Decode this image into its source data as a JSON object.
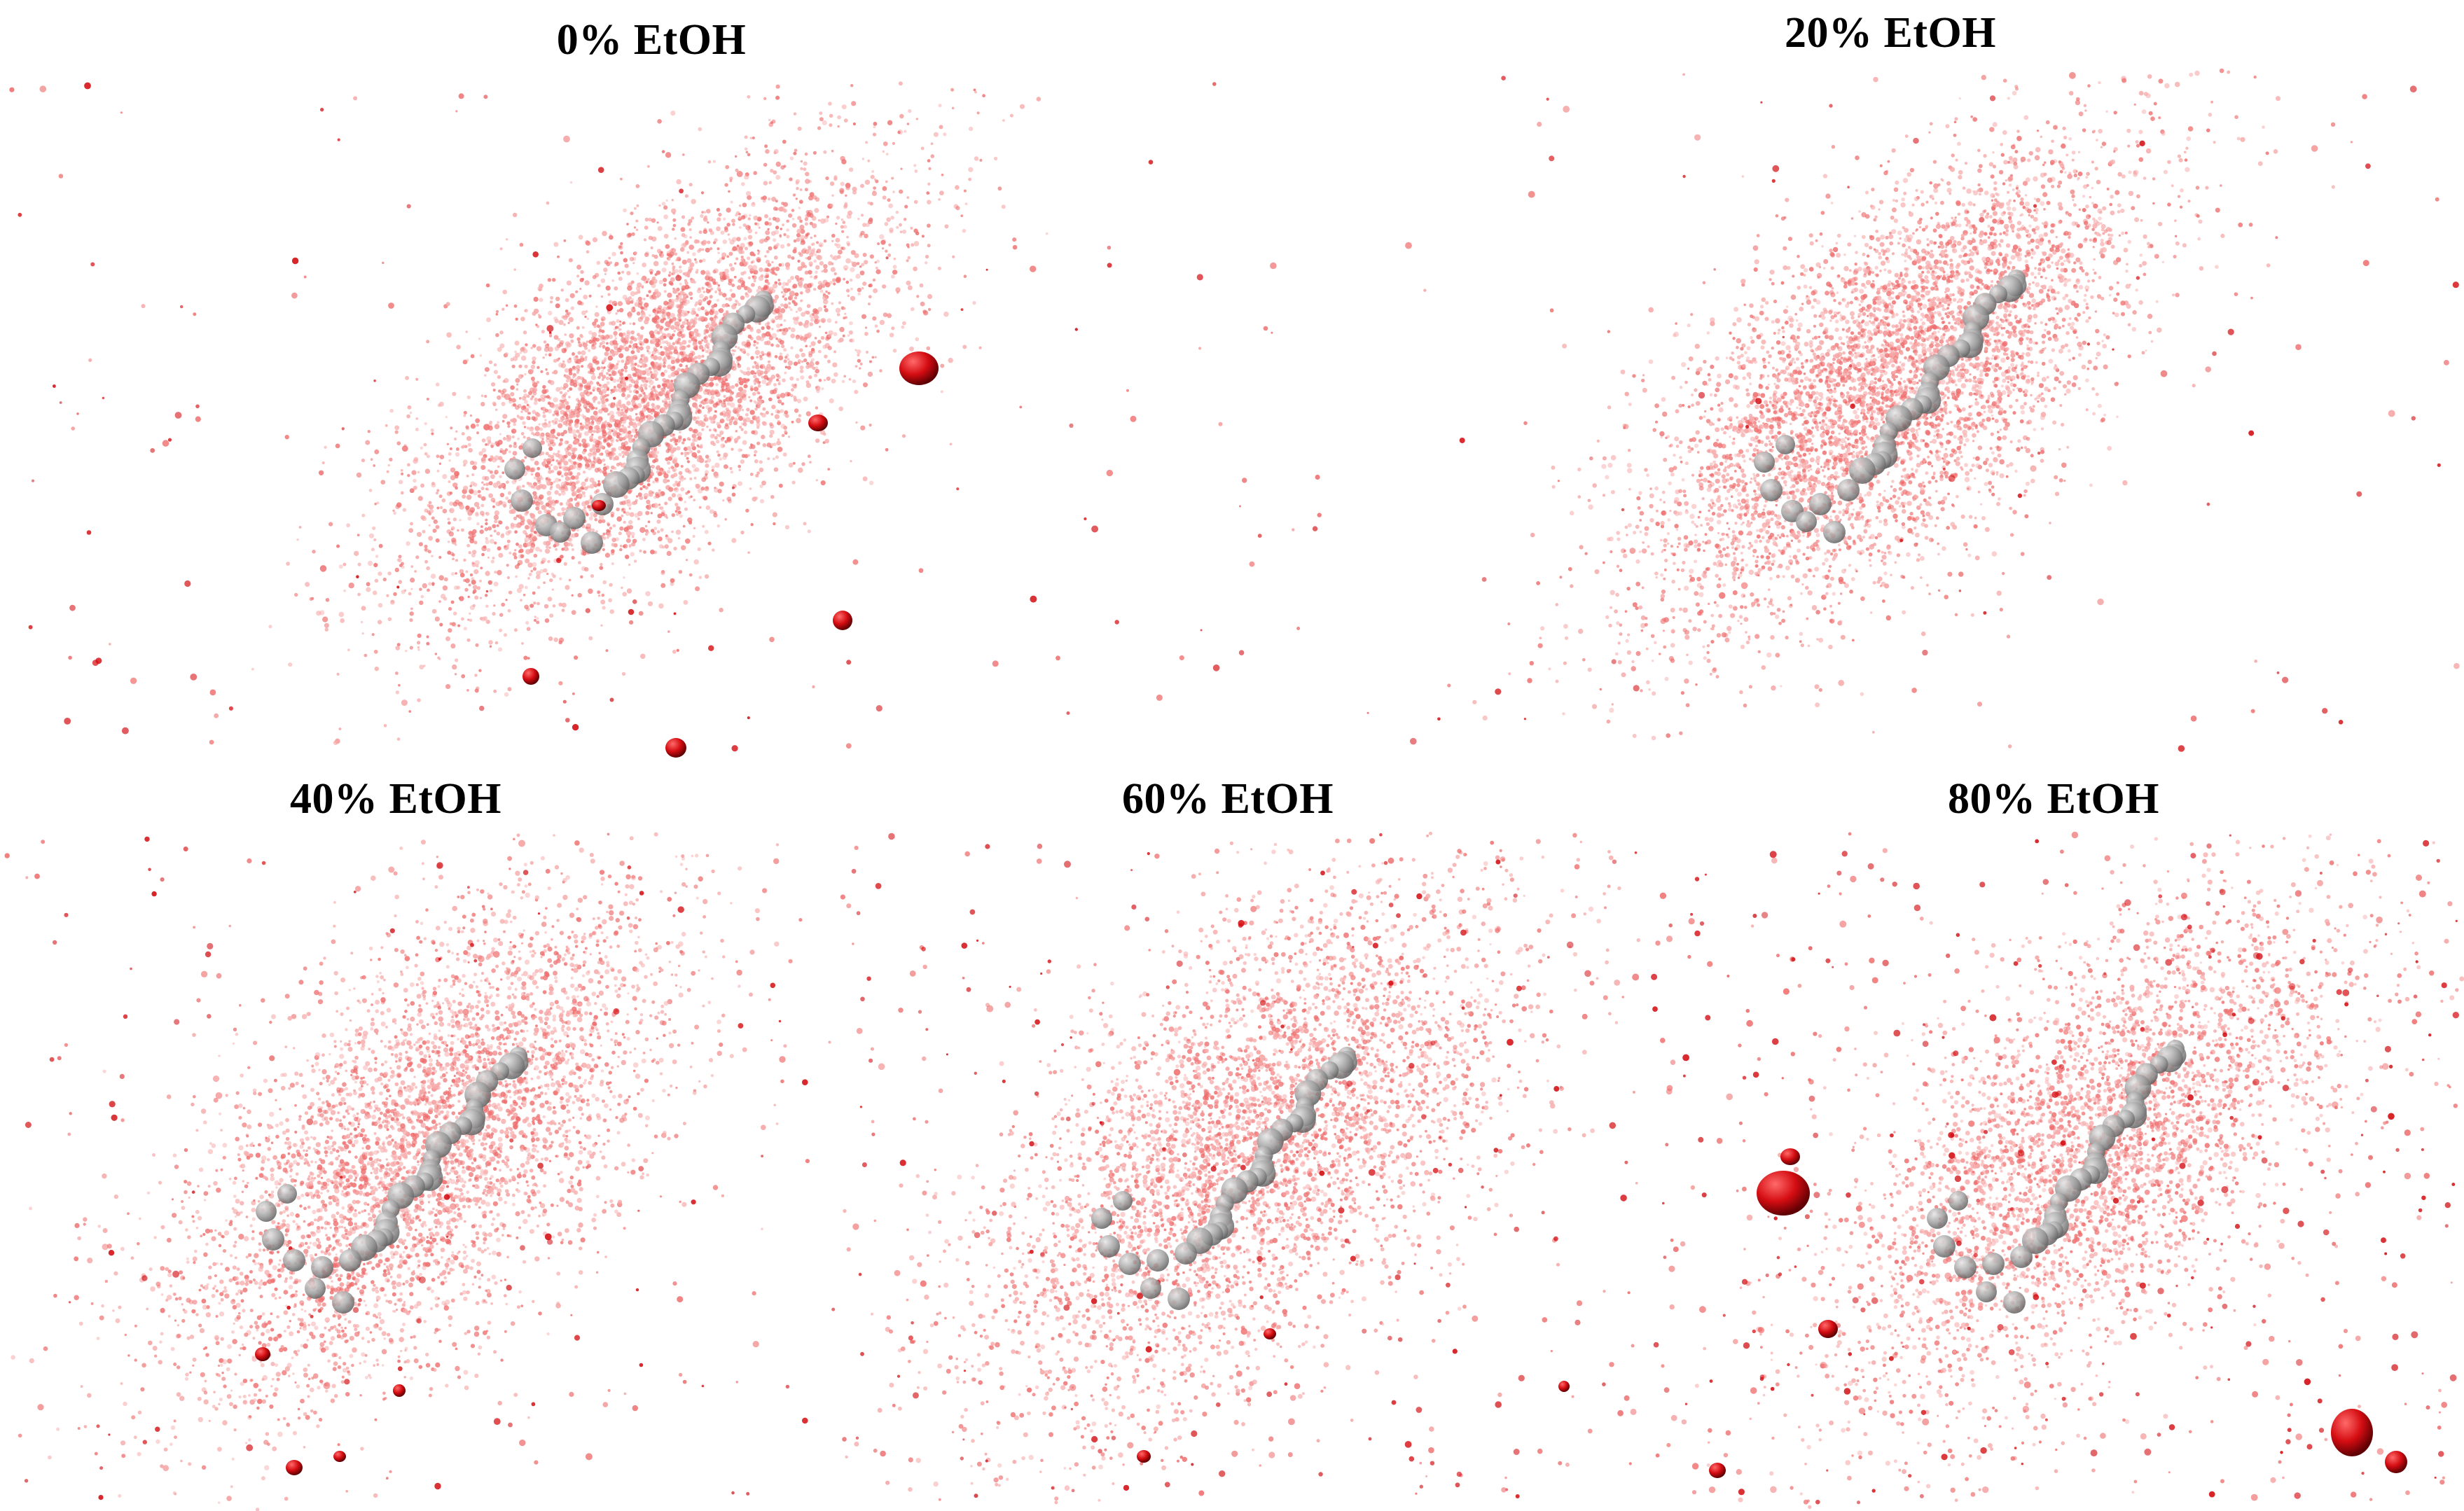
{
  "figure": {
    "panels": [
      {
        "id": "p0",
        "title": "0% EtOH"
      },
      {
        "id": "p20",
        "title": "20% EtOH"
      },
      {
        "id": "p40",
        "title": "40% EtOH"
      },
      {
        "id": "p60",
        "title": "60% EtOH"
      },
      {
        "id": "p80",
        "title": "80% EtOH"
      }
    ]
  },
  "colors": {
    "cloud_dot": "#ef6f6f",
    "cloud_light": "#f7a9a9",
    "large_blob": "#d40d12",
    "molecule": "#9a9a9a"
  }
}
